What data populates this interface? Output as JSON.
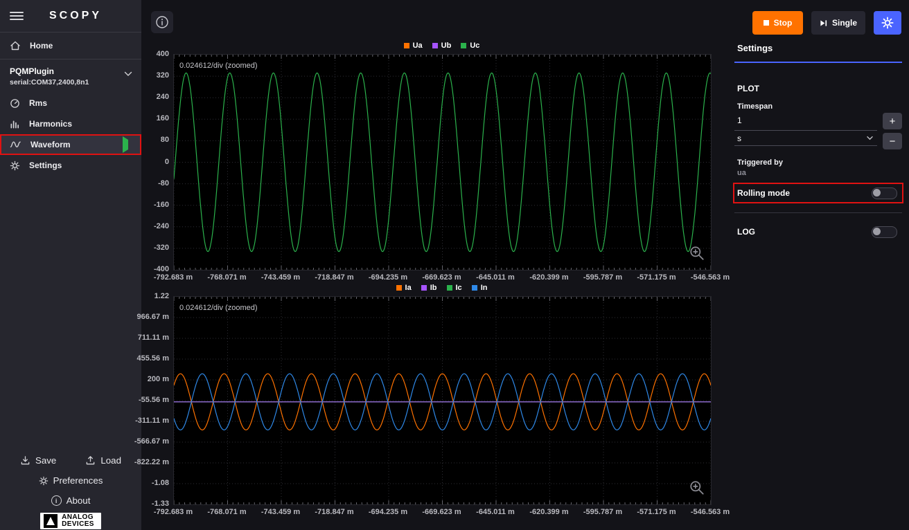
{
  "sidebar": {
    "logo": "SCOPY",
    "home_label": "Home",
    "plugin": {
      "name": "PQMPlugin",
      "serial": "serial:COM37,2400,8n1"
    },
    "tools": [
      {
        "label": "Rms"
      },
      {
        "label": "Harmonics"
      },
      {
        "label": "Waveform"
      },
      {
        "label": "Settings"
      }
    ],
    "footer": {
      "save": "Save",
      "load": "Load",
      "preferences": "Preferences",
      "about": "About",
      "brand_line1": "ANALOG",
      "brand_line2": "DEVICES"
    }
  },
  "topbar": {
    "stop_label": "Stop",
    "single_label": "Single"
  },
  "settings_panel": {
    "title": "Settings",
    "plot_section_label": "PLOT",
    "timespan_label": "Timespan",
    "timespan_value": "1",
    "timespan_unit": "s",
    "increment_label": "+",
    "decrement_label": "−",
    "triggered_by_label": "Triggered by",
    "triggered_by_value": "ua",
    "rolling_mode_label": "Rolling mode",
    "rolling_mode_state": "off",
    "log_label": "LOG",
    "log_state": "off"
  },
  "colors": {
    "accent_blue": "#4a64ff",
    "run_orange": "#ff7200",
    "annotation_red": "#e01212",
    "sidebar_bg": "#26262e",
    "page_bg": "#131318",
    "plot_bg": "#000000"
  },
  "chart_data": [
    {
      "id": "voltage-waveform",
      "type": "line",
      "title": "",
      "overlay_text": "0.024612/div (zoomed)",
      "grid": true,
      "grid_color": "#2e2e35",
      "bg_color": "#000000",
      "legend_position": "top-center",
      "legend": [
        {
          "label": "Ua",
          "color": "#ff7200"
        },
        {
          "label": "Ub",
          "color": "#a653ff"
        },
        {
          "label": "Uc",
          "color": "#2bb24c"
        }
      ],
      "xlabel": "",
      "ylabel": "",
      "x_unit": "s",
      "ylim": [
        -400,
        400
      ],
      "y_ticks": [
        "400",
        "320",
        "240",
        "160",
        "80",
        "0",
        "-80",
        "-160",
        "-240",
        "-320",
        "-400"
      ],
      "x_ticks": [
        "-792.683 m",
        "-768.071 m",
        "-743.459 m",
        "-718.847 m",
        "-694.235 m",
        "-669.623 m",
        "-645.011 m",
        "-620.399 m",
        "-595.787 m",
        "-571.175 m",
        "-546.563 m"
      ],
      "series": [
        {
          "name": "Uc",
          "color": "#2bb24c",
          "kind": "sine",
          "amplitude": 332,
          "offset": 0,
          "cycles": 12.3,
          "phase": 0.97
        }
      ]
    },
    {
      "id": "current-waveform",
      "type": "line",
      "title": "",
      "overlay_text": "0.024612/div (zoomed)",
      "grid": true,
      "grid_color": "#2e2e35",
      "bg_color": "#000000",
      "legend_position": "top-center",
      "legend": [
        {
          "label": "Ia",
          "color": "#ff7200"
        },
        {
          "label": "Ib",
          "color": "#a653ff"
        },
        {
          "label": "Ic",
          "color": "#2bb24c"
        },
        {
          "label": "In",
          "color": "#2f89e8"
        }
      ],
      "xlabel": "",
      "ylabel": "",
      "x_unit": "s",
      "ylim": [
        -1.33,
        1.22
      ],
      "y_ticks": [
        "1.22",
        "966.67 m",
        "711.11 m",
        "455.56 m",
        "200 m",
        "-55.56 m",
        "-311.11 m",
        "-566.67 m",
        "-822.22 m",
        "-1.08",
        "-1.33"
      ],
      "x_ticks": [
        "-792.683 m",
        "-768.071 m",
        "-743.459 m",
        "-718.847 m",
        "-694.235 m",
        "-669.623 m",
        "-645.011 m",
        "-620.399 m",
        "-595.787 m",
        "-571.175 m",
        "-546.563 m"
      ],
      "series": [
        {
          "name": "Ic",
          "color": "#2bb24c",
          "kind": "flat",
          "value": -0.07
        },
        {
          "name": "Ib",
          "color": "#b06aff",
          "kind": "flat",
          "value": -0.07
        },
        {
          "name": "Ia",
          "color": "#ff7200",
          "kind": "sine",
          "amplitude": 0.345,
          "offset": -0.07,
          "cycles": 12.3,
          "phase": 0.1
        },
        {
          "name": "In",
          "color": "#2f89e8",
          "kind": "sine",
          "amplitude": 0.345,
          "offset": -0.07,
          "cycles": 12.3,
          "phase": 0.6
        }
      ]
    }
  ]
}
